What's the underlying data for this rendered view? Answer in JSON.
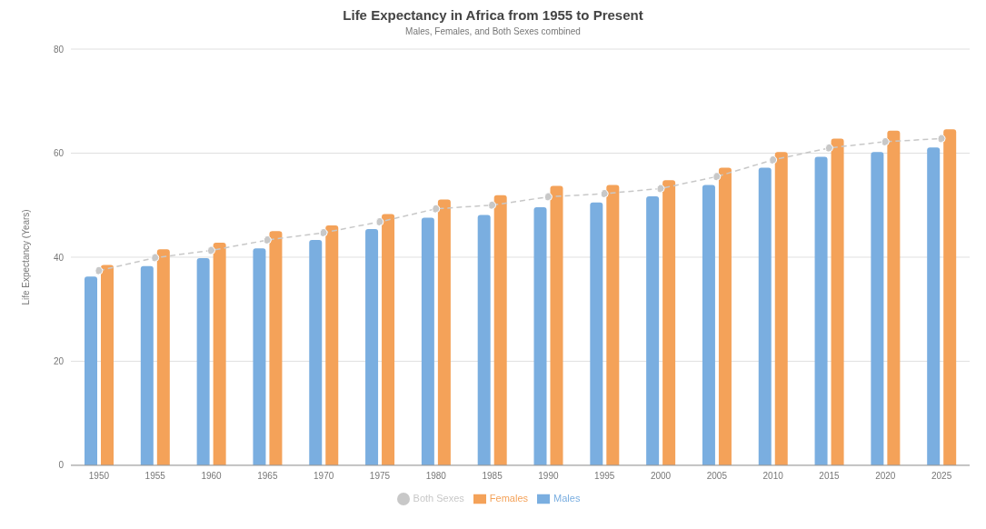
{
  "chart_data": {
    "type": "bar",
    "title": "Life Expectancy in Africa from 1955 to Present",
    "subtitle": "Males, Females, and Both Sexes combined",
    "ylabel": "Life Expectancy (Years)",
    "categories": [
      "1950",
      "1955",
      "1960",
      "1965",
      "1970",
      "1975",
      "1980",
      "1985",
      "1990",
      "1995",
      "2000",
      "2005",
      "2010",
      "2015",
      "2020",
      "2025"
    ],
    "series": [
      {
        "name": "Males",
        "color": "#7aaee0",
        "values": [
          36.3,
          38.3,
          39.8,
          41.7,
          43.3,
          45.4,
          47.6,
          48.1,
          49.6,
          50.5,
          51.7,
          53.9,
          57.2,
          59.3,
          60.2,
          61.1
        ]
      },
      {
        "name": "Females",
        "color": "#f4a259",
        "values": [
          38.5,
          41.5,
          42.8,
          45.0,
          46.1,
          48.3,
          51.1,
          51.9,
          53.7,
          53.9,
          54.8,
          57.2,
          60.2,
          62.8,
          64.3,
          64.6
        ]
      },
      {
        "name": "Both Sexes",
        "type": "line",
        "color": "#c8c8c8",
        "line_style": "dashed",
        "marker": "circle",
        "values": [
          37.4,
          39.9,
          41.3,
          43.3,
          44.7,
          46.8,
          49.3,
          50.0,
          51.6,
          52.2,
          53.2,
          55.5,
          58.7,
          61.0,
          62.2,
          62.8
        ]
      }
    ],
    "ylim": [
      0,
      80
    ],
    "yticks": [
      0,
      20,
      40,
      60,
      80
    ],
    "grid": "y",
    "legend": "bottom"
  }
}
